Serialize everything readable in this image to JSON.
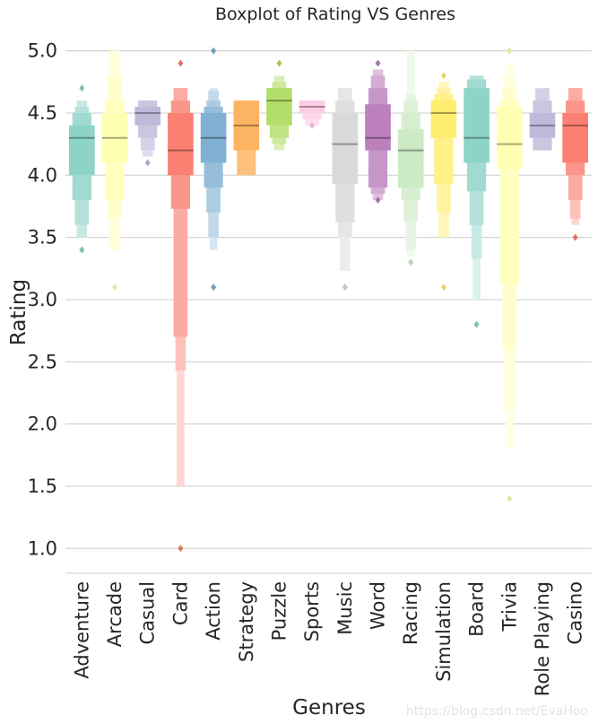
{
  "chart_data": {
    "type": "boxen",
    "title": "Boxplot of Rating VS Genres",
    "xlabel": "Genres",
    "ylabel": "Rating",
    "ylim": [
      0.8,
      5.12
    ],
    "yticks": [
      1.0,
      1.5,
      2.0,
      2.5,
      3.0,
      3.5,
      4.0,
      4.5,
      5.0
    ],
    "ytick_labels": [
      "1.0",
      "1.5",
      "2.0",
      "2.5",
      "3.0",
      "3.5",
      "4.0",
      "4.5",
      "5.0"
    ],
    "grid": "horizontal",
    "categories": [
      "Adventure",
      "Arcade",
      "Casual",
      "Card",
      "Action",
      "Strategy",
      "Puzzle",
      "Sports",
      "Music",
      "Word",
      "Racing",
      "Simulation",
      "Board",
      "Trivia",
      "Role Playing",
      "Casino"
    ],
    "series": [
      {
        "name": "Adventure",
        "color": "#8dd3c7",
        "median": 4.3,
        "boxes": [
          [
            4.0,
            4.4
          ],
          [
            3.8,
            4.5
          ],
          [
            3.6,
            4.55
          ],
          [
            3.5,
            4.6
          ]
        ],
        "outliers": [
          4.7,
          3.4
        ]
      },
      {
        "name": "Arcade",
        "color": "#ffffb3",
        "median": 4.3,
        "boxes": [
          [
            4.1,
            4.5
          ],
          [
            3.8,
            4.6
          ],
          [
            3.65,
            4.8
          ],
          [
            3.4,
            5.0
          ]
        ],
        "outliers": [
          3.1
        ]
      },
      {
        "name": "Casual",
        "color": "#bebada",
        "median": 4.5,
        "boxes": [
          [
            4.4,
            4.55
          ],
          [
            4.3,
            4.6
          ],
          [
            4.2,
            4.6
          ],
          [
            4.15,
            4.6
          ]
        ],
        "outliers": [
          4.1
        ]
      },
      {
        "name": "Card",
        "color": "#fb8072",
        "median": 4.2,
        "boxes": [
          [
            4.0,
            4.5
          ],
          [
            3.73,
            4.6
          ],
          [
            2.7,
            4.7
          ],
          [
            2.43,
            4.7
          ],
          [
            1.5,
            4.7
          ]
        ],
        "outliers": [
          4.9,
          1.0
        ]
      },
      {
        "name": "Action",
        "color": "#80b1d3",
        "median": 4.3,
        "boxes": [
          [
            4.1,
            4.5
          ],
          [
            3.9,
            4.55
          ],
          [
            3.7,
            4.6
          ],
          [
            3.5,
            4.68
          ],
          [
            3.4,
            4.7
          ]
        ],
        "outliers": [
          5.0,
          3.1
        ]
      },
      {
        "name": "Strategy",
        "color": "#fdb462",
        "median": 4.4,
        "boxes": [
          [
            4.2,
            4.6
          ],
          [
            4.0,
            4.6
          ]
        ],
        "outliers": []
      },
      {
        "name": "Puzzle",
        "color": "#b3de69",
        "median": 4.6,
        "boxes": [
          [
            4.4,
            4.7
          ],
          [
            4.3,
            4.7
          ],
          [
            4.25,
            4.75
          ],
          [
            4.2,
            4.8
          ]
        ],
        "outliers": [
          4.9
        ]
      },
      {
        "name": "Sports",
        "color": "#fccde5",
        "median": 4.55,
        "boxes": [
          [
            4.5,
            4.6
          ],
          [
            4.45,
            4.6
          ],
          [
            4.4,
            4.6
          ]
        ],
        "outliers": [
          4.4
        ]
      },
      {
        "name": "Music",
        "color": "#d9d9d9",
        "median": 4.25,
        "boxes": [
          [
            3.93,
            4.5
          ],
          [
            3.62,
            4.6
          ],
          [
            3.5,
            4.7
          ],
          [
            3.23,
            4.7
          ]
        ],
        "outliers": [
          3.1
        ]
      },
      {
        "name": "Word",
        "color": "#bc80bd",
        "median": 4.3,
        "boxes": [
          [
            4.2,
            4.57
          ],
          [
            3.9,
            4.7
          ],
          [
            3.85,
            4.8
          ],
          [
            3.8,
            4.85
          ]
        ],
        "outliers": [
          4.9,
          3.8
        ]
      },
      {
        "name": "Racing",
        "color": "#ccebc5",
        "median": 4.2,
        "boxes": [
          [
            3.9,
            4.37
          ],
          [
            3.8,
            4.5
          ],
          [
            3.63,
            4.6
          ],
          [
            3.4,
            4.65
          ],
          [
            3.35,
            5.0
          ]
        ],
        "outliers": [
          3.3
        ]
      },
      {
        "name": "Simulation",
        "color": "#ffed6f",
        "median": 4.5,
        "boxes": [
          [
            4.3,
            4.6
          ],
          [
            3.93,
            4.65
          ],
          [
            3.7,
            4.7
          ],
          [
            3.5,
            4.75
          ]
        ],
        "outliers": [
          4.8,
          3.1
        ]
      },
      {
        "name": "Board",
        "color": "#8dd3c7",
        "median": 4.3,
        "boxes": [
          [
            4.1,
            4.7
          ],
          [
            3.87,
            4.77
          ],
          [
            3.6,
            4.8
          ],
          [
            3.33,
            4.8
          ],
          [
            3.0,
            4.8
          ]
        ],
        "outliers": [
          2.8
        ]
      },
      {
        "name": "Trivia",
        "color": "#ffffb3",
        "median": 4.25,
        "boxes": [
          [
            4.05,
            4.55
          ],
          [
            3.12,
            4.6
          ],
          [
            2.6,
            4.7
          ],
          [
            2.1,
            4.8
          ],
          [
            1.8,
            4.9
          ]
        ],
        "outliers": [
          5.0,
          1.4
        ]
      },
      {
        "name": "Role Playing",
        "color": "#bebada",
        "median": 4.4,
        "boxes": [
          [
            4.3,
            4.5
          ],
          [
            4.2,
            4.6
          ],
          [
            4.2,
            4.7
          ]
        ],
        "outliers": []
      },
      {
        "name": "Casino",
        "color": "#fb8072",
        "median": 4.4,
        "boxes": [
          [
            4.1,
            4.5
          ],
          [
            4.0,
            4.6
          ],
          [
            3.8,
            4.7
          ],
          [
            3.65,
            4.7
          ],
          [
            3.6,
            4.7
          ]
        ],
        "outliers": [
          3.5
        ]
      }
    ]
  },
  "watermark": "https://blog.csdn.net/EvaHoo"
}
